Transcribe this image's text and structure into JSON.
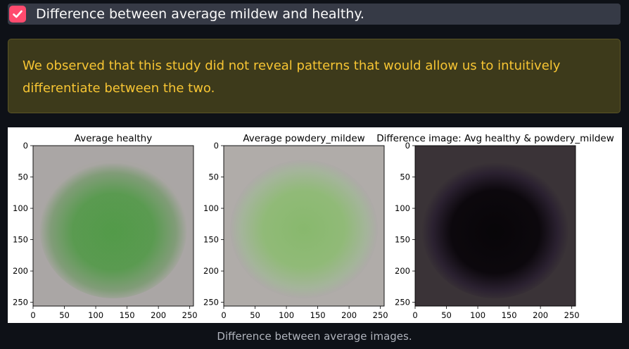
{
  "checkbox": {
    "label": "Difference between average mildew and healthy.",
    "checked": true,
    "accent_color": "#ff4b6e",
    "icon": "check-icon"
  },
  "alert": {
    "text": "We observed that this study did not reveal patterns that would allow us to intuitively differentiate between the two.",
    "text_color": "#f7c533",
    "background_color": "#3d3a1b"
  },
  "figure": {
    "panels": [
      {
        "title": "Average healthy",
        "kind": "healthy"
      },
      {
        "title": "Average powdery_mildew",
        "kind": "mildew"
      },
      {
        "title": "Difference image: Avg healthy & powdery_mildew",
        "kind": "difference"
      }
    ],
    "x_ticks": [
      "0",
      "50",
      "100",
      "150",
      "200",
      "250"
    ],
    "y_ticks": [
      "0",
      "50",
      "100",
      "150",
      "200",
      "250"
    ],
    "x_tick_values": [
      0,
      50,
      100,
      150,
      200,
      250
    ],
    "y_tick_values": [
      0,
      50,
      100,
      150,
      200,
      250
    ],
    "axis_range": [
      0,
      256
    ]
  },
  "caption": "Difference between average images."
}
